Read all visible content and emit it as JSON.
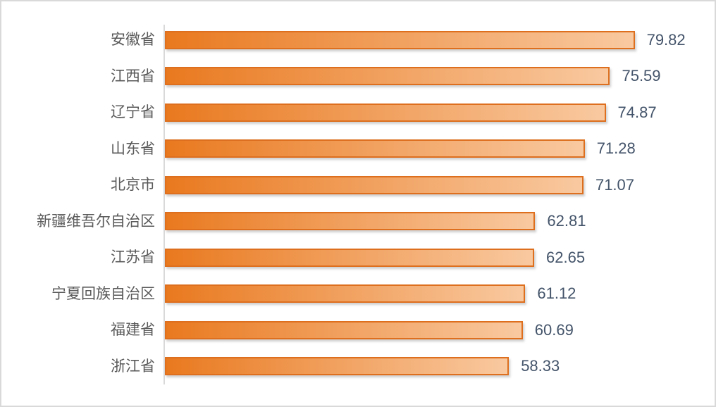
{
  "chart_data": {
    "type": "bar",
    "orientation": "horizontal",
    "title": "",
    "xlabel": "",
    "ylabel": "",
    "categories": [
      "安徽省",
      "江西省",
      "辽宁省",
      "山东省",
      "北京市",
      "新疆维吾尔自治区",
      "江苏省",
      "宁夏回族自治区",
      "福建省",
      "浙江省"
    ],
    "values": [
      79.82,
      75.59,
      74.87,
      71.28,
      71.07,
      62.81,
      62.65,
      61.12,
      60.69,
      58.33
    ],
    "data_labels": [
      "79.82",
      "75.59",
      "74.87",
      "71.28",
      "71.07",
      "62.81",
      "62.65",
      "61.12",
      "60.69",
      "58.33"
    ],
    "xlim": [
      0,
      93
    ],
    "grid": false,
    "legend": false,
    "colors": {
      "bar_gradient_start": "#e9791f",
      "bar_gradient_end": "#f9c9a0",
      "bar_border": "#dd6f1f",
      "category_label": "#595959",
      "value_label": "#44546a",
      "axis_line": "#d9d9d9",
      "chart_border": "#d9d9d9",
      "background": "#ffffff"
    }
  }
}
